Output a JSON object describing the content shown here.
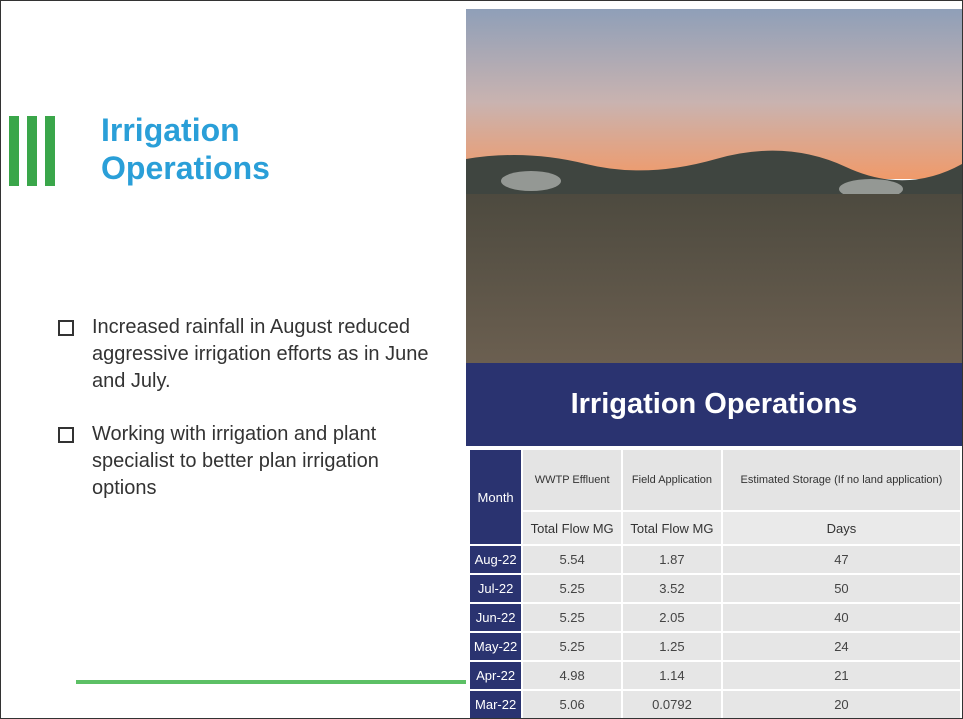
{
  "slide": {
    "title": "Irrigation Operations",
    "bullets": [
      "Increased rainfall in August reduced aggressive irrigation efforts as in June and July.",
      "Working with irrigation and plant specialist to better plan irrigation options"
    ]
  },
  "table": {
    "title": "Irrigation Operations",
    "headers": [
      "Month",
      "WWTP Effluent",
      "Field Application",
      "Estimated Storage (If no land application)"
    ],
    "subheaders": [
      "Total Flow MG",
      "Total Flow MG",
      "Days"
    ],
    "rows": [
      [
        "Aug-22",
        "5.54",
        "1.87",
        "47"
      ],
      [
        "Jul-22",
        "5.25",
        "3.52",
        "50"
      ],
      [
        "Jun-22",
        "5.25",
        "2.05",
        "40"
      ],
      [
        "May-22",
        "5.25",
        "1.25",
        "24"
      ],
      [
        "Apr-22",
        "4.98",
        "1.14",
        "21"
      ],
      [
        "Mar-22",
        "5.06",
        "0.0792",
        "20"
      ]
    ]
  }
}
